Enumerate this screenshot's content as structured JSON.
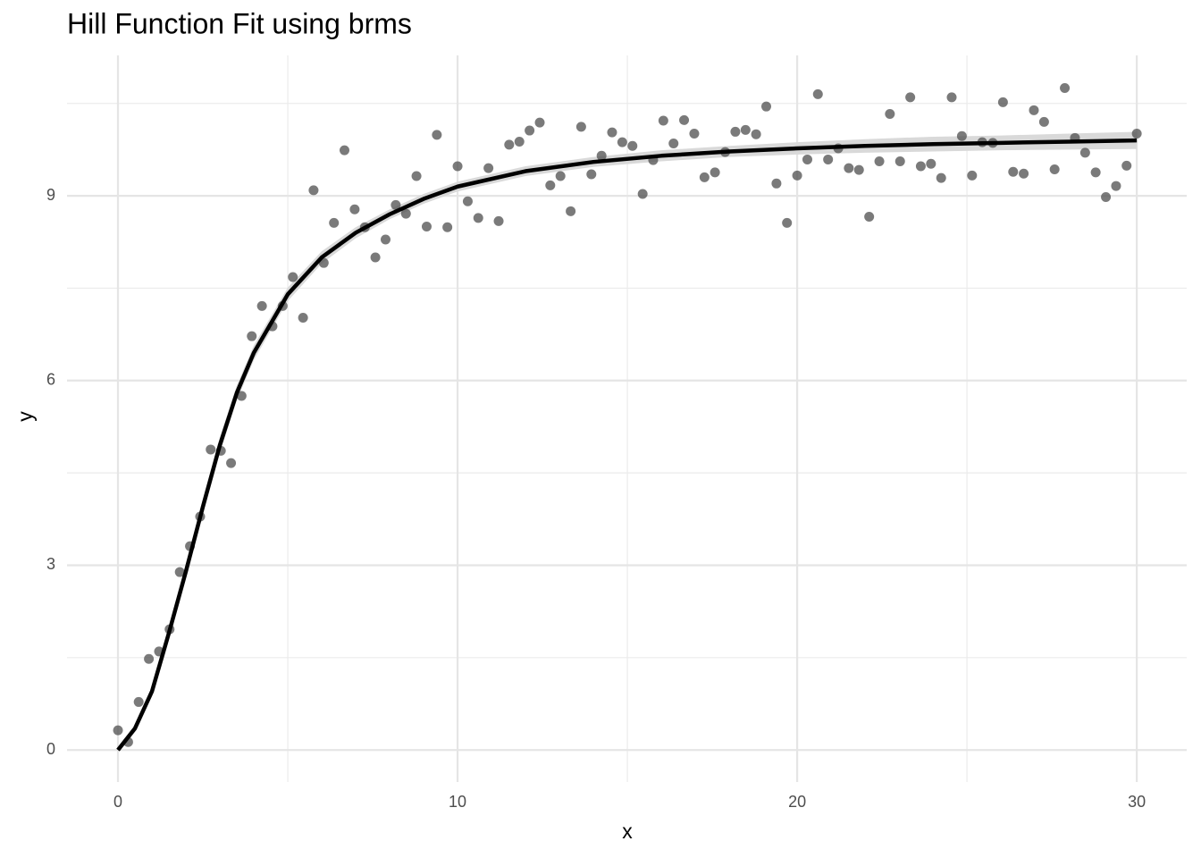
{
  "chart_data": {
    "type": "scatter",
    "title": "Hill Function Fit using brms",
    "x_label": "x",
    "y_label": "y",
    "xlim": [
      -1.5,
      31.47
    ],
    "ylim": [
      -0.52,
      11.28
    ],
    "xticks": [
      0,
      10,
      20,
      30
    ],
    "yticks": [
      0,
      3,
      6,
      9
    ],
    "xminor": [
      5,
      15,
      25
    ],
    "yminor": [
      1.5,
      4.5,
      7.5,
      10.5
    ],
    "grid": true,
    "points": {
      "color": "#4d4d4d",
      "x": [
        0,
        0.3,
        0.61,
        0.91,
        1.21,
        1.52,
        1.82,
        2.12,
        2.42,
        2.73,
        3.03,
        3.33,
        3.64,
        3.94,
        4.24,
        4.55,
        4.85,
        5.15,
        5.45,
        5.76,
        6.06,
        6.36,
        6.67,
        6.97,
        7.27,
        7.58,
        7.88,
        8.18,
        8.48,
        8.79,
        9.09,
        9.39,
        9.7,
        10,
        10.3,
        10.61,
        10.91,
        11.21,
        11.52,
        11.82,
        12.12,
        12.42,
        12.73,
        13.03,
        13.33,
        13.64,
        13.94,
        14.24,
        14.55,
        14.85,
        15.15,
        15.45,
        15.76,
        16.06,
        16.36,
        16.67,
        16.97,
        17.27,
        17.58,
        17.88,
        18.18,
        18.48,
        18.79,
        19.09,
        19.39,
        19.7,
        20,
        20.3,
        20.61,
        20.91,
        21.21,
        21.52,
        21.82,
        22.12,
        22.42,
        22.73,
        23.03,
        23.33,
        23.64,
        23.94,
        24.24,
        24.55,
        24.85,
        25.15,
        25.45,
        25.76,
        26.06,
        26.36,
        26.67,
        26.97,
        27.27,
        27.58,
        27.88,
        28.18,
        28.48,
        28.79,
        29.09,
        29.39,
        29.7,
        30
      ],
      "y": [
        0.32,
        0.13,
        0.78,
        1.48,
        1.6,
        1.96,
        2.89,
        3.31,
        3.79,
        4.88,
        4.86,
        4.66,
        5.75,
        6.72,
        7.21,
        6.88,
        7.21,
        7.68,
        7.02,
        9.09,
        7.91,
        8.56,
        9.74,
        8.78,
        8.49,
        8,
        8.29,
        8.85,
        8.71,
        9.32,
        8.5,
        9.99,
        8.49,
        9.48,
        8.91,
        8.64,
        9.45,
        8.59,
        9.83,
        9.88,
        10.06,
        10.19,
        9.17,
        9.32,
        8.75,
        10.12,
        9.35,
        9.65,
        10.03,
        9.87,
        9.81,
        9.03,
        9.58,
        10.22,
        9.85,
        10.23,
        10.01,
        9.3,
        9.38,
        9.71,
        10.04,
        10.07,
        10,
        10.45,
        9.2,
        8.56,
        9.33,
        9.59,
        10.65,
        9.59,
        9.77,
        9.45,
        9.42,
        8.66,
        9.56,
        10.33,
        9.56,
        10.6,
        9.48,
        9.52,
        9.29,
        10.6,
        9.97,
        9.33,
        9.87,
        9.86,
        10.52,
        9.39,
        9.36,
        10.39,
        10.2,
        9.43,
        10.75,
        9.94,
        9.7,
        9.38,
        8.98,
        9.16,
        9.49,
        10.01
      ]
    },
    "fit": {
      "color": "#000000",
      "band_color": "#d9d9d9",
      "x": [
        0,
        0.5,
        1,
        1.5,
        2,
        2.5,
        3,
        3.5,
        4,
        5,
        6,
        7,
        8,
        9,
        10,
        12,
        14,
        16,
        18,
        20,
        22,
        24,
        26,
        28,
        30
      ],
      "y": [
        0,
        0.35,
        0.95,
        1.9,
        2.9,
        3.95,
        4.95,
        5.8,
        6.45,
        7.4,
        8,
        8.4,
        8.7,
        8.95,
        9.15,
        9.4,
        9.55,
        9.65,
        9.72,
        9.77,
        9.81,
        9.84,
        9.86,
        9.88,
        9.9
      ],
      "lower": [
        0,
        0.3,
        0.87,
        1.8,
        2.78,
        3.82,
        4.82,
        5.68,
        6.33,
        7.29,
        7.9,
        8.31,
        8.62,
        8.87,
        9.07,
        9.32,
        9.47,
        9.56,
        9.63,
        9.67,
        9.7,
        9.72,
        9.74,
        9.75,
        9.76
      ],
      "upper": [
        0,
        0.4,
        1.03,
        2,
        3.02,
        4.08,
        5.08,
        5.92,
        6.57,
        7.51,
        8.1,
        8.49,
        8.78,
        9.03,
        9.23,
        9.48,
        9.63,
        9.74,
        9.81,
        9.87,
        9.92,
        9.96,
        9.98,
        10.01,
        10.04
      ]
    }
  }
}
